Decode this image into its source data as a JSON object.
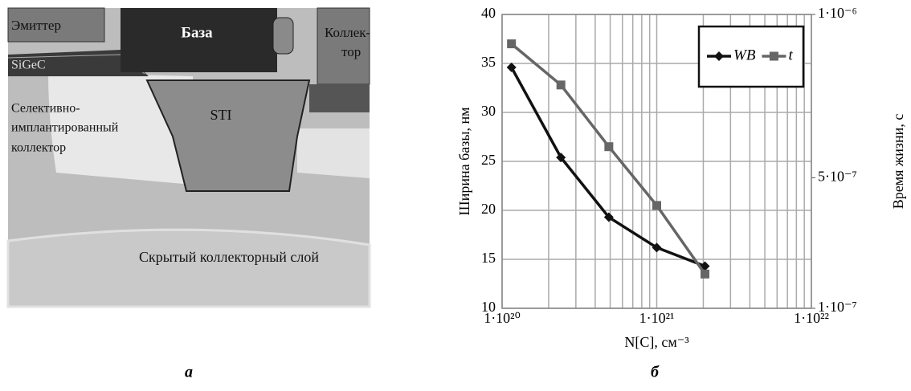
{
  "diagram": {
    "labels": [
      "Эмиттер",
      "База",
      "Коллек-",
      "тор",
      "SiGeC",
      "Селективно-",
      "имплантированный",
      "коллектор",
      "STI",
      "Скрытый коллекторный слой"
    ]
  },
  "captions": [
    "а",
    "б"
  ],
  "chart_data": {
    "type": "line",
    "x": [
      1.15e+20,
      2.4e+20,
      4.9e+20,
      1e+21,
      2.05e+21
    ],
    "xlim": [
      1e+20,
      1e+22
    ],
    "log_x": true,
    "xticks": [
      {
        "value": 1e+20,
        "label": "1·10²⁰"
      },
      {
        "value": 1e+21,
        "label": "1·10²¹"
      },
      {
        "value": 1e+22,
        "label": "1·10²²"
      }
    ],
    "ylim": [
      10,
      40
    ],
    "yticks": [
      10,
      15,
      20,
      25,
      30,
      35,
      40
    ],
    "y2lim": [
      1e-07,
      1e-06
    ],
    "y2ticks": [
      {
        "value": 1e-07,
        "label": "1·10⁻⁷"
      },
      {
        "value": 5e-07,
        "label": "5·10⁻⁷"
      },
      {
        "value": 1e-06,
        "label": "1·10⁻⁶"
      }
    ],
    "xlabel": "N[C], см⁻³",
    "ylabel": "Ширина базы, нм",
    "y2label": "Время жизни, с",
    "grid": true,
    "legend": "upper right",
    "series": [
      {
        "name": "WВ",
        "color": "#111111",
        "marker": "diamond",
        "values": [
          34.6,
          25.4,
          19.3,
          16.2,
          14.3
        ]
      },
      {
        "name": "t",
        "color": "#666666",
        "marker": "square",
        "axis": "y2",
        "values": [
          9.1e-07,
          7.84e-07,
          5.95e-07,
          4.15e-07,
          2.05e-07
        ]
      }
    ]
  }
}
